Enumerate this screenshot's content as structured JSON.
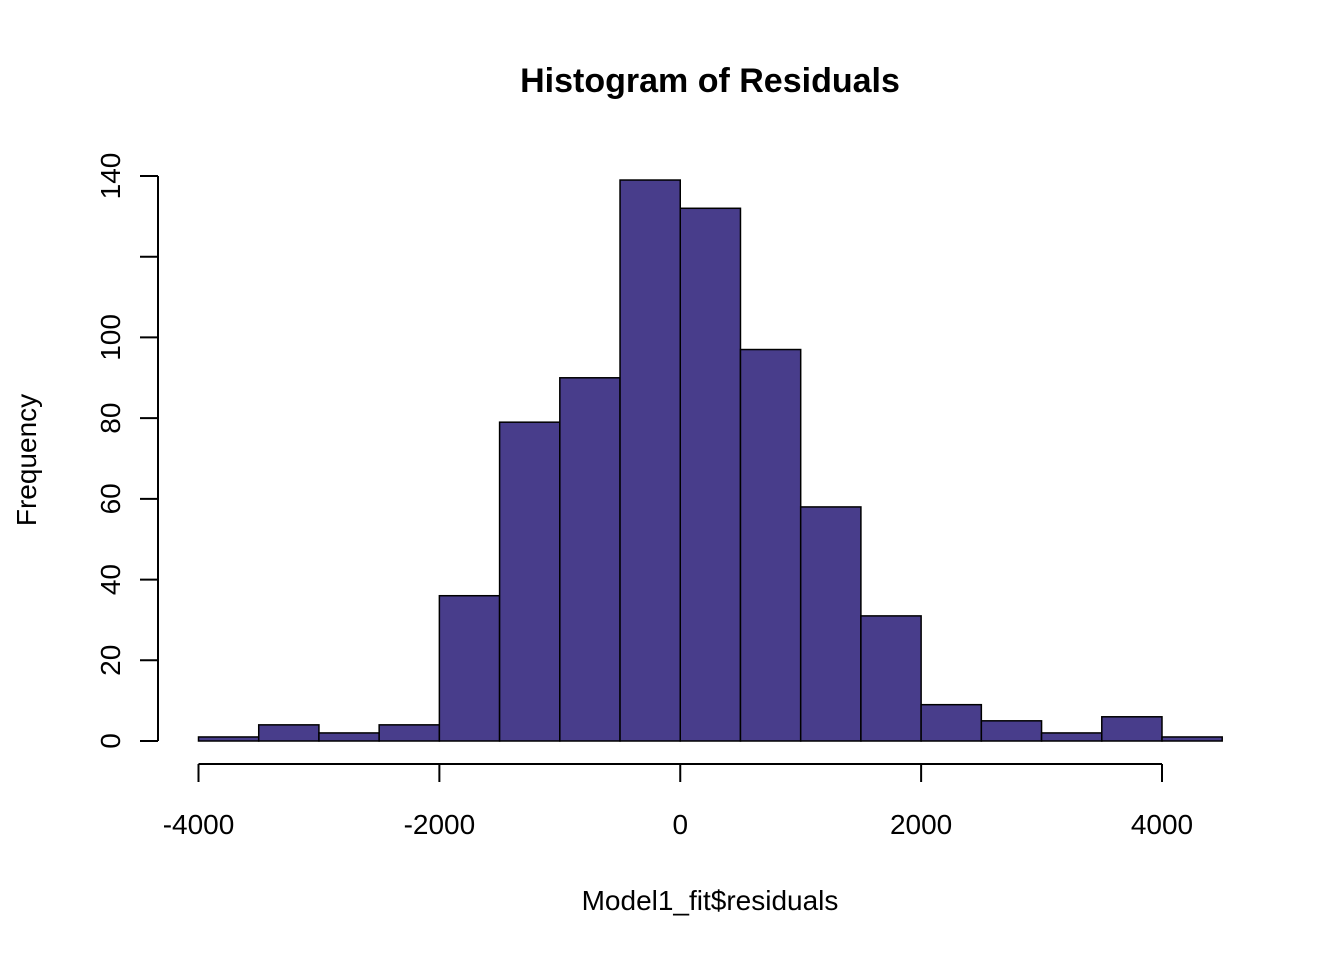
{
  "chart_data": {
    "type": "bar",
    "title": "Histogram of Residuals",
    "xlabel": "Model1_fit$residuals",
    "ylabel": "Frequency",
    "bin_edges": [
      -4000,
      -3500,
      -3000,
      -2500,
      -2000,
      -1500,
      -1000,
      -500,
      0,
      500,
      1000,
      1500,
      2000,
      2500,
      3000,
      3500,
      4000,
      4500
    ],
    "values": [
      1,
      4,
      2,
      4,
      36,
      79,
      90,
      139,
      132,
      97,
      58,
      31,
      9,
      5,
      2,
      6,
      1
    ],
    "xlim": [
      -4000,
      4500
    ],
    "ylim": [
      0,
      140
    ],
    "xticks": [
      -4000,
      -2000,
      0,
      2000,
      4000
    ],
    "xtick_labels": [
      "-4000",
      "-2000",
      "0",
      "2000",
      "4000"
    ],
    "yticks": [
      0,
      20,
      40,
      60,
      80,
      100,
      120,
      140
    ],
    "ytick_labels": [
      "0",
      "20",
      "40",
      "60",
      "80",
      "100",
      "",
      "140"
    ],
    "bar_color": "#483D8B",
    "grid": false,
    "legend": "none"
  }
}
